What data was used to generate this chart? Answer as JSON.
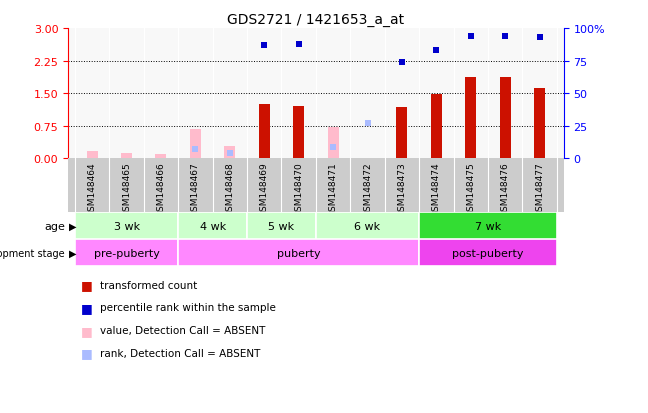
{
  "title": "GDS2721 / 1421653_a_at",
  "samples": [
    "GSM148464",
    "GSM148465",
    "GSM148466",
    "GSM148467",
    "GSM148468",
    "GSM148469",
    "GSM148470",
    "GSM148471",
    "GSM148472",
    "GSM148473",
    "GSM148474",
    "GSM148475",
    "GSM148476",
    "GSM148477"
  ],
  "red_values": [
    0.12,
    0.08,
    0.07,
    0.0,
    0.2,
    1.25,
    1.2,
    0.0,
    0.0,
    1.18,
    1.48,
    1.88,
    1.88,
    1.62
  ],
  "pink_values": [
    0.18,
    0.12,
    0.1,
    0.68,
    0.28,
    0.0,
    0.0,
    0.72,
    0.0,
    0.0,
    0.0,
    0.0,
    0.0,
    0.0
  ],
  "blue_values": [
    0.0,
    0.0,
    0.0,
    0.0,
    0.0,
    87.0,
    88.0,
    0.0,
    0.0,
    74.0,
    83.0,
    94.0,
    94.0,
    93.0
  ],
  "lblue_values": [
    0.0,
    0.0,
    0.0,
    7.0,
    4.0,
    0.0,
    0.0,
    9.0,
    27.0,
    0.0,
    0.0,
    0.0,
    0.0,
    0.0
  ],
  "absent_red": [
    true,
    true,
    true,
    true,
    true,
    false,
    false,
    true,
    false,
    false,
    false,
    false,
    false,
    false
  ],
  "absent_blue": [
    true,
    true,
    true,
    true,
    true,
    false,
    false,
    true,
    true,
    false,
    false,
    false,
    false,
    false
  ],
  "age_groups": [
    {
      "label": "3 wk",
      "start": 0,
      "end": 3,
      "color": "#ccffcc"
    },
    {
      "label": "4 wk",
      "start": 3,
      "end": 5,
      "color": "#ccffcc"
    },
    {
      "label": "5 wk",
      "start": 5,
      "end": 7,
      "color": "#ccffcc"
    },
    {
      "label": "6 wk",
      "start": 7,
      "end": 10,
      "color": "#ccffcc"
    },
    {
      "label": "7 wk",
      "start": 10,
      "end": 14,
      "color": "#33dd33"
    }
  ],
  "dev_groups": [
    {
      "label": "pre-puberty",
      "start": 0,
      "end": 3,
      "color": "#ff88ff"
    },
    {
      "label": "puberty",
      "start": 3,
      "end": 10,
      "color": "#ff88ff"
    },
    {
      "label": "post-puberty",
      "start": 10,
      "end": 14,
      "color": "#ee44ee"
    }
  ],
  "ylim_left": [
    0,
    3
  ],
  "ylim_right": [
    0,
    100
  ],
  "yticks_left": [
    0,
    0.75,
    1.5,
    2.25,
    3.0
  ],
  "yticks_right": [
    0,
    25,
    50,
    75,
    100
  ],
  "bar_width": 0.32,
  "red_color": "#cc1100",
  "pink_color": "#ffbbcc",
  "blue_color": "#0000cc",
  "lblue_color": "#aabbff",
  "plot_bg": "#f8f8f8",
  "tick_bg": "#cccccc",
  "grid_color": "#000000"
}
